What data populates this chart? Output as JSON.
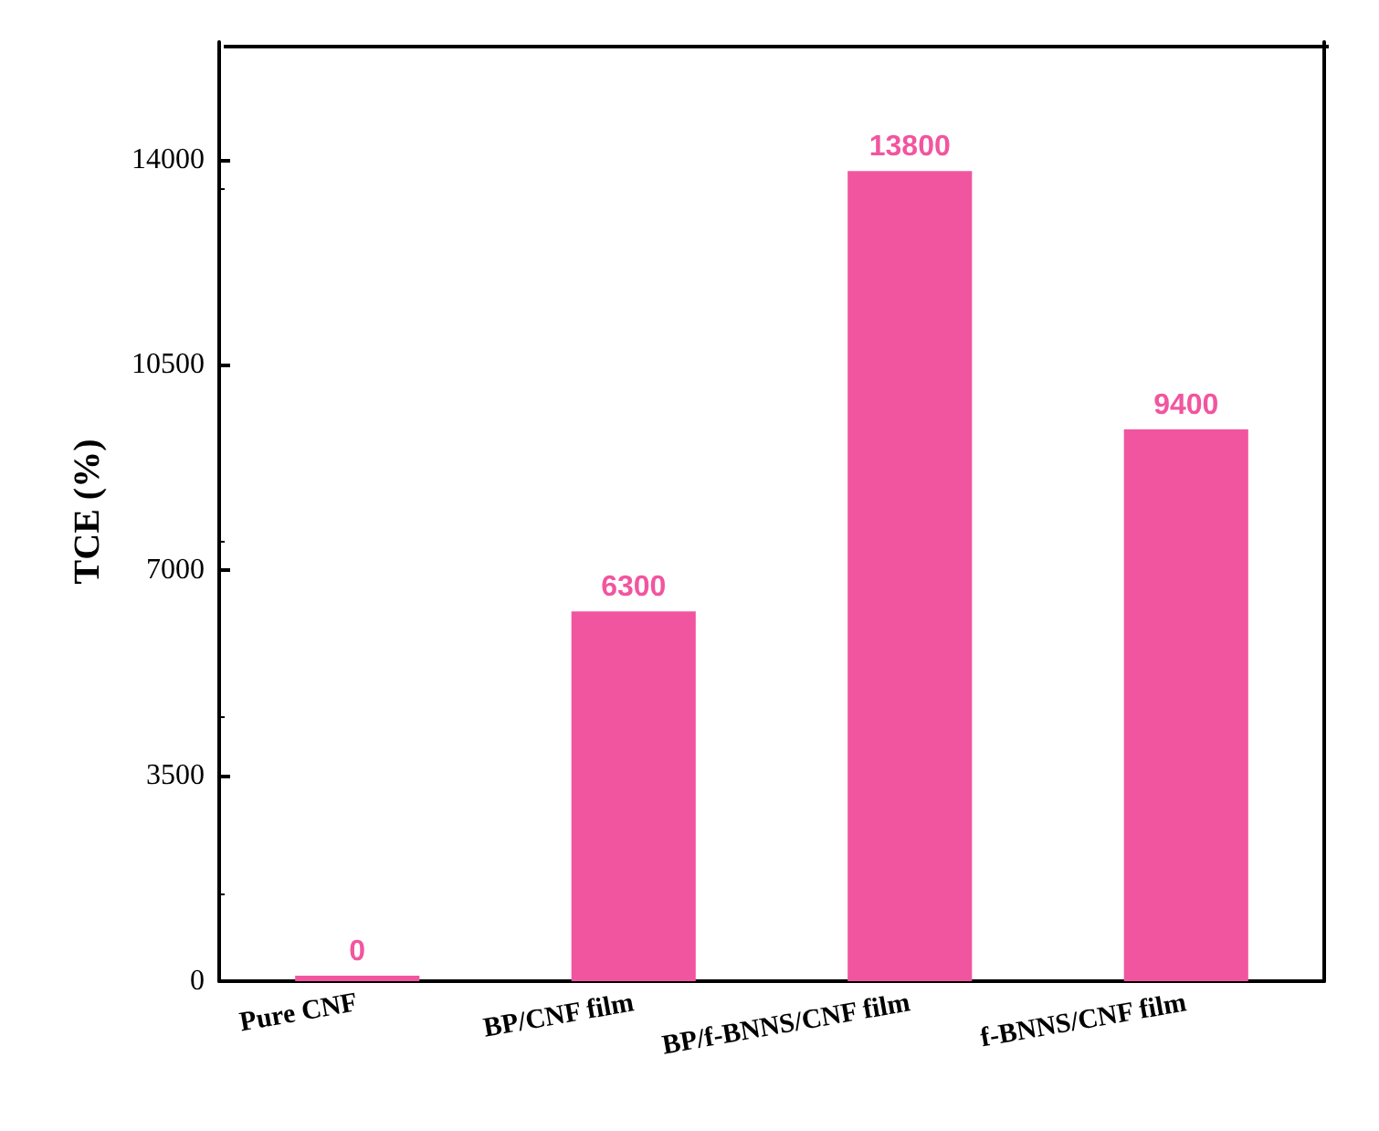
{
  "chart_data": {
    "type": "bar",
    "ylabel": "TCE (%)",
    "categories": [
      "Pure CNF",
      "BP/CNF film",
      "BP/f-BNNS/CNF film",
      "f-BNNS/CNF film"
    ],
    "values": [
      0,
      6300,
      13800,
      9400
    ],
    "color": "#f2559f",
    "ylim": [
      0,
      16000
    ],
    "yticks": [
      0,
      3500,
      7000,
      10500,
      14000
    ],
    "grid": false,
    "data_labels": true
  }
}
